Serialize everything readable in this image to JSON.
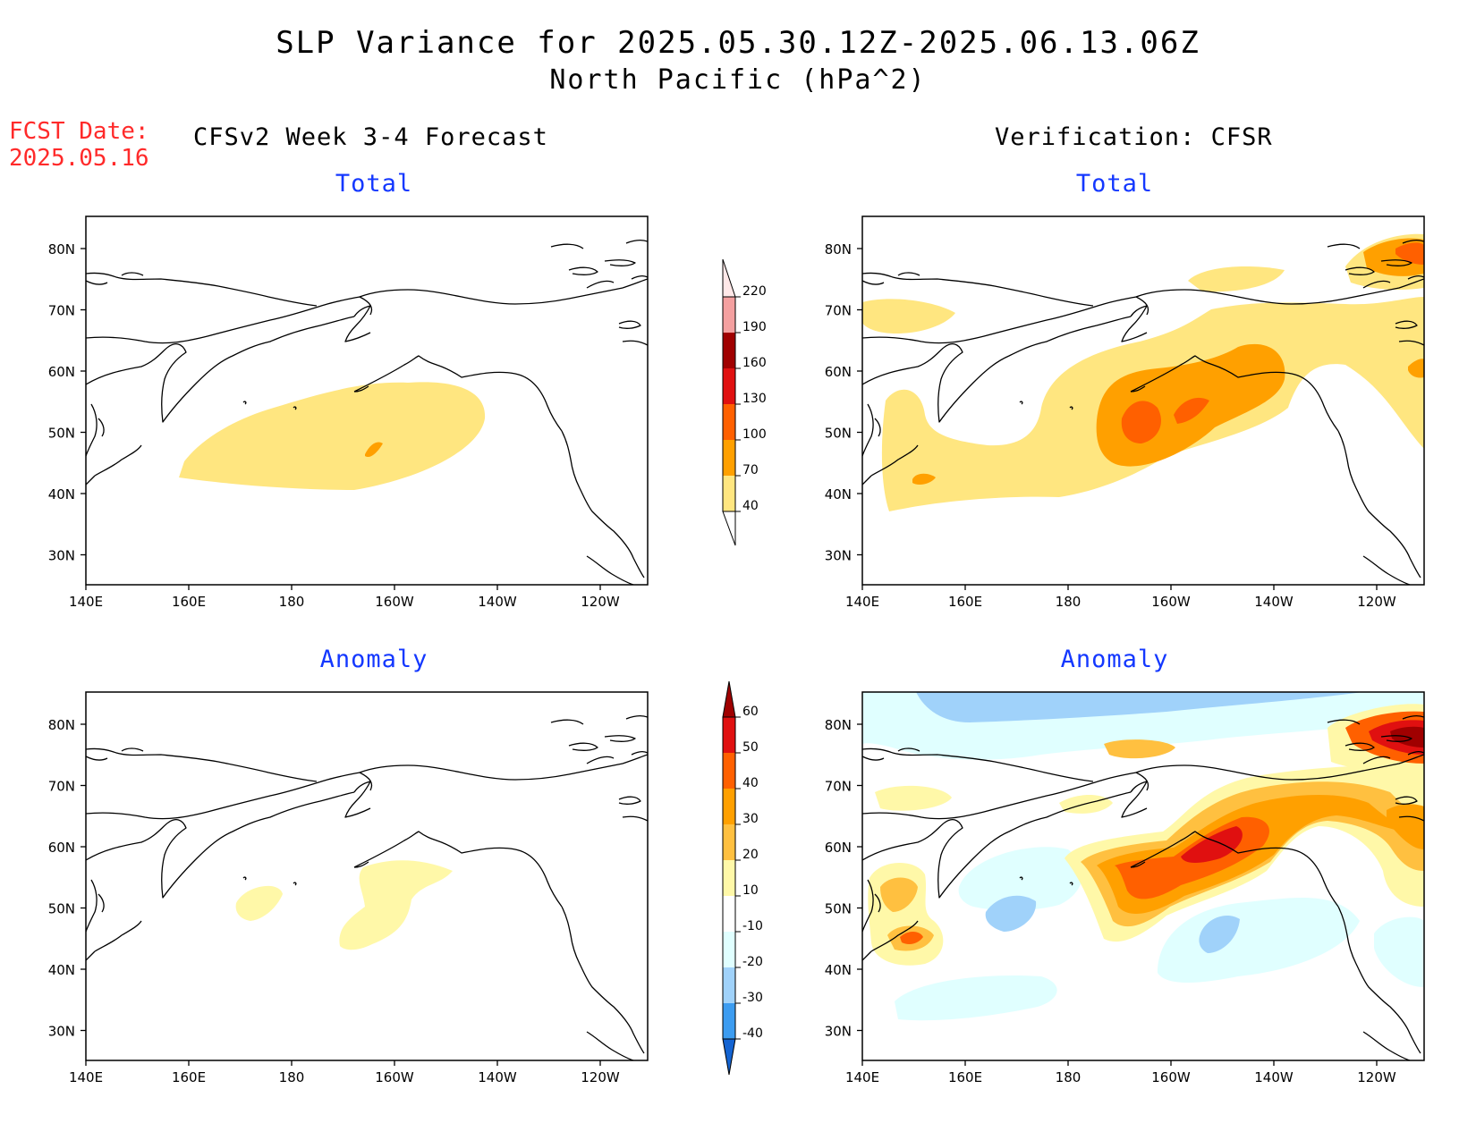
{
  "header": {
    "title": "SLP Variance for 2025.05.30.12Z-2025.06.13.06Z",
    "subtitle": "North Pacific (hPa^2)",
    "fcst_label": "FCST Date:",
    "fcst_date": "2025.05.16"
  },
  "columns": {
    "left": "CFSv2 Week 3-4 Forecast",
    "right": "Verification: CFSR"
  },
  "panels": {
    "fcst_total": "Total",
    "fcst_anomaly": "Anomaly",
    "ver_total": "Total",
    "ver_anomaly": "Anomaly"
  },
  "axes": {
    "lon_ticks": [
      "140E",
      "160E",
      "180",
      "160W",
      "140W",
      "120W"
    ],
    "lat_ticks": [
      "80N",
      "70N",
      "60N",
      "50N",
      "40N",
      "30N"
    ]
  },
  "colorbar_total": {
    "levels": [
      "40",
      "70",
      "100",
      "130",
      "160",
      "190",
      "220"
    ],
    "colors": [
      "#ffe680",
      "#ffa000",
      "#ff6000",
      "#e01010",
      "#a00000",
      "#f4a0a0",
      "#ffe8e8"
    ]
  },
  "colorbar_anomaly": {
    "levels": [
      "60",
      "50",
      "40",
      "30",
      "20",
      "10",
      "-10",
      "-20",
      "-30",
      "-40"
    ],
    "colors": [
      "#a00000",
      "#e01010",
      "#ff6000",
      "#ffa000",
      "#ffc040",
      "#fff8a8",
      "#ffffff",
      "#e0ffff",
      "#a0d2fa",
      "#3c9cf0",
      "#1464d2"
    ]
  }
}
